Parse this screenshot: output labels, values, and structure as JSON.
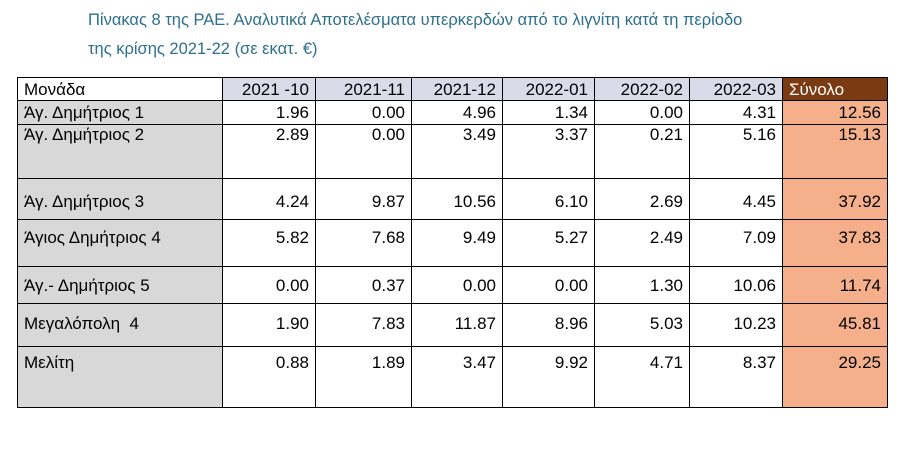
{
  "caption": {
    "line1": "Πίνακας 8 της ΡΑΕ. Αναλυτικά Αποτελέσματα υπερκερδών από το λιγνίτη κατά τη περίοδο",
    "line2": "της κρίσης 2021-22 (σε εκατ. €)"
  },
  "colors": {
    "caption_text": "#2d6f8e",
    "month_header_bg": "#d9dbe8",
    "total_header_bg": "#7a3b13",
    "total_cell_bg": "#f5b08b",
    "unit_cell_bg": "#d8d8d8"
  },
  "table": {
    "headers": {
      "unit": "Μονάδα",
      "months": [
        "2021 -10",
        "2021-11",
        "2021-12",
        "2022-01",
        "2022-02",
        "2022-03"
      ],
      "total": "Σύνολο"
    },
    "rows": [
      {
        "unit": "Άγ. Δημήτριος 1",
        "values": [
          "1.96",
          "0.00",
          "4.96",
          "1.34",
          "0.00",
          "4.31"
        ],
        "total": "12.56"
      },
      {
        "unit": "Άγ. Δημήτριος 2",
        "values": [
          "2.89",
          "0.00",
          "3.49",
          "3.37",
          "0.21",
          "5.16"
        ],
        "total": "15.13"
      },
      {
        "unit": "Άγ. Δημήτριος 3",
        "values": [
          "4.24",
          "9.87",
          "10.56",
          "6.10",
          "2.69",
          "4.45"
        ],
        "total": "37.92"
      },
      {
        "unit": "Άγιος Δημήτριος 4",
        "values": [
          "5.82",
          "7.68",
          "9.49",
          "5.27",
          "2.49",
          "7.09"
        ],
        "total": "37.83"
      },
      {
        "unit": "Άγ.- Δημήτριος 5",
        "values": [
          "0.00",
          "0.37",
          "0.00",
          "0.00",
          "1.30",
          "10.06"
        ],
        "total": "11.74"
      },
      {
        "unit": "Μεγαλόπολη  4",
        "values": [
          "1.90",
          "7.83",
          "11.87",
          "8.96",
          "5.03",
          "10.23"
        ],
        "total": "45.81"
      },
      {
        "unit": "Μελίτη",
        "values": [
          "0.88",
          "1.89",
          "3.47",
          "9.92",
          "4.71",
          "8.37"
        ],
        "total": "29.25"
      }
    ]
  }
}
